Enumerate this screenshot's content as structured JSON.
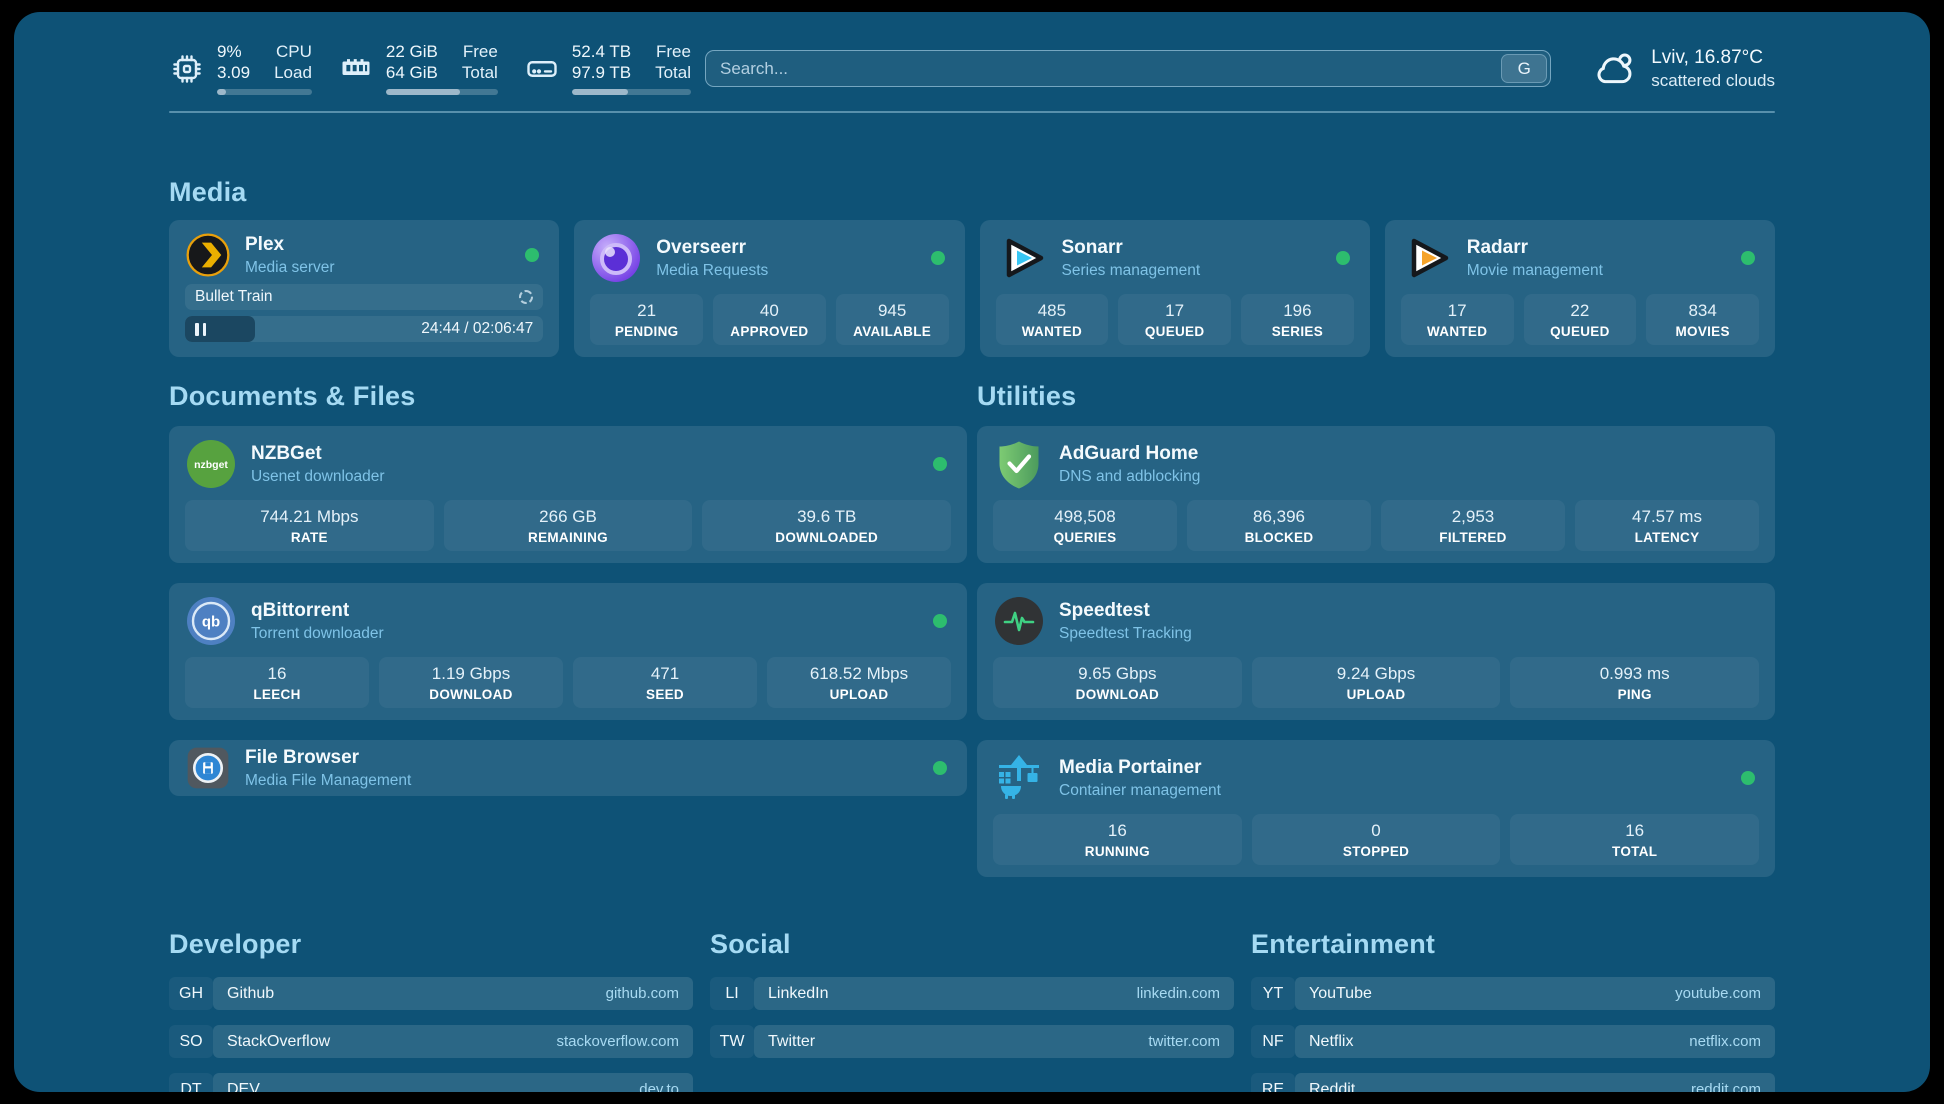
{
  "system": {
    "cpu": {
      "value_top": "9%",
      "value_bottom": "3.09",
      "label_top": "CPU",
      "label_bottom": "Load",
      "percent": 9
    },
    "ram": {
      "value_top": "22 GiB",
      "value_bottom": "64 GiB",
      "label_top": "Free",
      "label_bottom": "Total",
      "percent": 66
    },
    "disk": {
      "value_top": "52.4 TB",
      "value_bottom": "97.9 TB",
      "label_top": "Free",
      "label_bottom": "Total",
      "percent": 47
    }
  },
  "search": {
    "placeholder": "Search...",
    "engine_button": "G"
  },
  "weather": {
    "location": "Lviv, 16.87°C",
    "condition": "scattered clouds"
  },
  "sections": {
    "media": {
      "title": "Media"
    },
    "documents": {
      "title": "Documents & Files"
    },
    "utilities": {
      "title": "Utilities"
    },
    "developer": {
      "title": "Developer"
    },
    "social": {
      "title": "Social"
    },
    "entertainment": {
      "title": "Entertainment"
    }
  },
  "apps": {
    "plex": {
      "name": "Plex",
      "subtitle": "Media server",
      "online": true,
      "now_playing": {
        "title": "Bullet Train",
        "time_display": "24:44 / 02:06:47",
        "progress_percent": 19.5
      }
    },
    "overseerr": {
      "name": "Overseerr",
      "subtitle": "Media Requests",
      "online": true,
      "stats": [
        {
          "value": "21",
          "label": "PENDING"
        },
        {
          "value": "40",
          "label": "APPROVED"
        },
        {
          "value": "945",
          "label": "AVAILABLE"
        }
      ]
    },
    "sonarr": {
      "name": "Sonarr",
      "subtitle": "Series management",
      "online": true,
      "stats": [
        {
          "value": "485",
          "label": "WANTED"
        },
        {
          "value": "17",
          "label": "QUEUED"
        },
        {
          "value": "196",
          "label": "SERIES"
        }
      ]
    },
    "radarr": {
      "name": "Radarr",
      "subtitle": "Movie management",
      "online": true,
      "stats": [
        {
          "value": "17",
          "label": "WANTED"
        },
        {
          "value": "22",
          "label": "QUEUED"
        },
        {
          "value": "834",
          "label": "MOVIES"
        }
      ]
    },
    "nzbget": {
      "name": "NZBGet",
      "subtitle": "Usenet downloader",
      "online": true,
      "stats": [
        {
          "value": "744.21 Mbps",
          "label": "RATE"
        },
        {
          "value": "266 GB",
          "label": "REMAINING"
        },
        {
          "value": "39.6 TB",
          "label": "DOWNLOADED"
        }
      ]
    },
    "adguard": {
      "name": "AdGuard Home",
      "subtitle": "DNS and adblocking",
      "online": false,
      "stats": [
        {
          "value": "498,508",
          "label": "QUERIES"
        },
        {
          "value": "86,396",
          "label": "BLOCKED"
        },
        {
          "value": "2,953",
          "label": "FILTERED"
        },
        {
          "value": "47.57 ms",
          "label": "LATENCY"
        }
      ]
    },
    "qbittorrent": {
      "name": "qBittorrent",
      "subtitle": "Torrent downloader",
      "online": true,
      "stats": [
        {
          "value": "16",
          "label": "LEECH"
        },
        {
          "value": "1.19 Gbps",
          "label": "DOWNLOAD"
        },
        {
          "value": "471",
          "label": "SEED"
        },
        {
          "value": "618.52 Mbps",
          "label": "UPLOAD"
        }
      ]
    },
    "speedtest": {
      "name": "Speedtest",
      "subtitle": "Speedtest Tracking",
      "online": false,
      "stats": [
        {
          "value": "9.65 Gbps",
          "label": "DOWNLOAD"
        },
        {
          "value": "9.24 Gbps",
          "label": "UPLOAD"
        },
        {
          "value": "0.993 ms",
          "label": "PING"
        }
      ]
    },
    "filebrowser": {
      "name": "File Browser",
      "subtitle": "Media File Management",
      "online": true
    },
    "portainer": {
      "name": "Media Portainer",
      "subtitle": "Container management",
      "online": true,
      "stats": [
        {
          "value": "16",
          "label": "RUNNING"
        },
        {
          "value": "0",
          "label": "STOPPED"
        },
        {
          "value": "16",
          "label": "TOTAL"
        }
      ]
    }
  },
  "bookmarks": {
    "developer": [
      {
        "abbr": "GH",
        "name": "Github",
        "url": "github.com"
      },
      {
        "abbr": "SO",
        "name": "StackOverflow",
        "url": "stackoverflow.com"
      },
      {
        "abbr": "DT",
        "name": "DEV",
        "url": "dev.to"
      }
    ],
    "social": [
      {
        "abbr": "LI",
        "name": "LinkedIn",
        "url": "linkedin.com"
      },
      {
        "abbr": "TW",
        "name": "Twitter",
        "url": "twitter.com"
      }
    ],
    "entertainment": [
      {
        "abbr": "YT",
        "name": "YouTube",
        "url": "youtube.com"
      },
      {
        "abbr": "NF",
        "name": "Netflix",
        "url": "netflix.com"
      },
      {
        "abbr": "RE",
        "name": "Reddit",
        "url": "reddit.com"
      }
    ]
  },
  "colors": {
    "background": "#0e5276",
    "status_green": "#2dbd6e",
    "section_title": "#a5daf3"
  }
}
